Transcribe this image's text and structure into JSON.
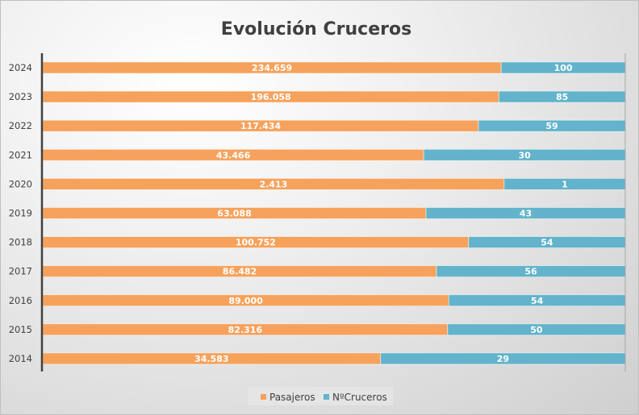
{
  "chart_data": {
    "type": "bar",
    "orientation": "horizontal",
    "stacking": "percent",
    "title": "Evolución Cruceros",
    "xlabel": "",
    "ylabel": "",
    "categories": [
      "2024",
      "2023",
      "2022",
      "2021",
      "2020",
      "2019",
      "2018",
      "2017",
      "2016",
      "2015",
      "2014"
    ],
    "series": [
      {
        "name": "Pasajeros",
        "color": "#F6A25C",
        "labels": [
          "234.659",
          "196.058",
          "117.434",
          "43.466",
          "2.413",
          "63.088",
          "100.752",
          "86.482",
          "89.000",
          "82.316",
          "34.583"
        ],
        "share": [
          0.787,
          0.783,
          0.748,
          0.654,
          0.792,
          0.658,
          0.731,
          0.676,
          0.697,
          0.695,
          0.58
        ]
      },
      {
        "name": "NºCruceros",
        "color": "#62B3CB",
        "labels": [
          "100",
          "85",
          "59",
          "30",
          "1",
          "43",
          "54",
          "56",
          "54",
          "50",
          "29"
        ],
        "share": [
          0.213,
          0.217,
          0.252,
          0.346,
          0.208,
          0.342,
          0.269,
          0.324,
          0.303,
          0.305,
          0.42
        ]
      }
    ],
    "xlim": [
      0,
      1
    ],
    "grid": false,
    "legend": "bottom",
    "data_labels": true
  }
}
